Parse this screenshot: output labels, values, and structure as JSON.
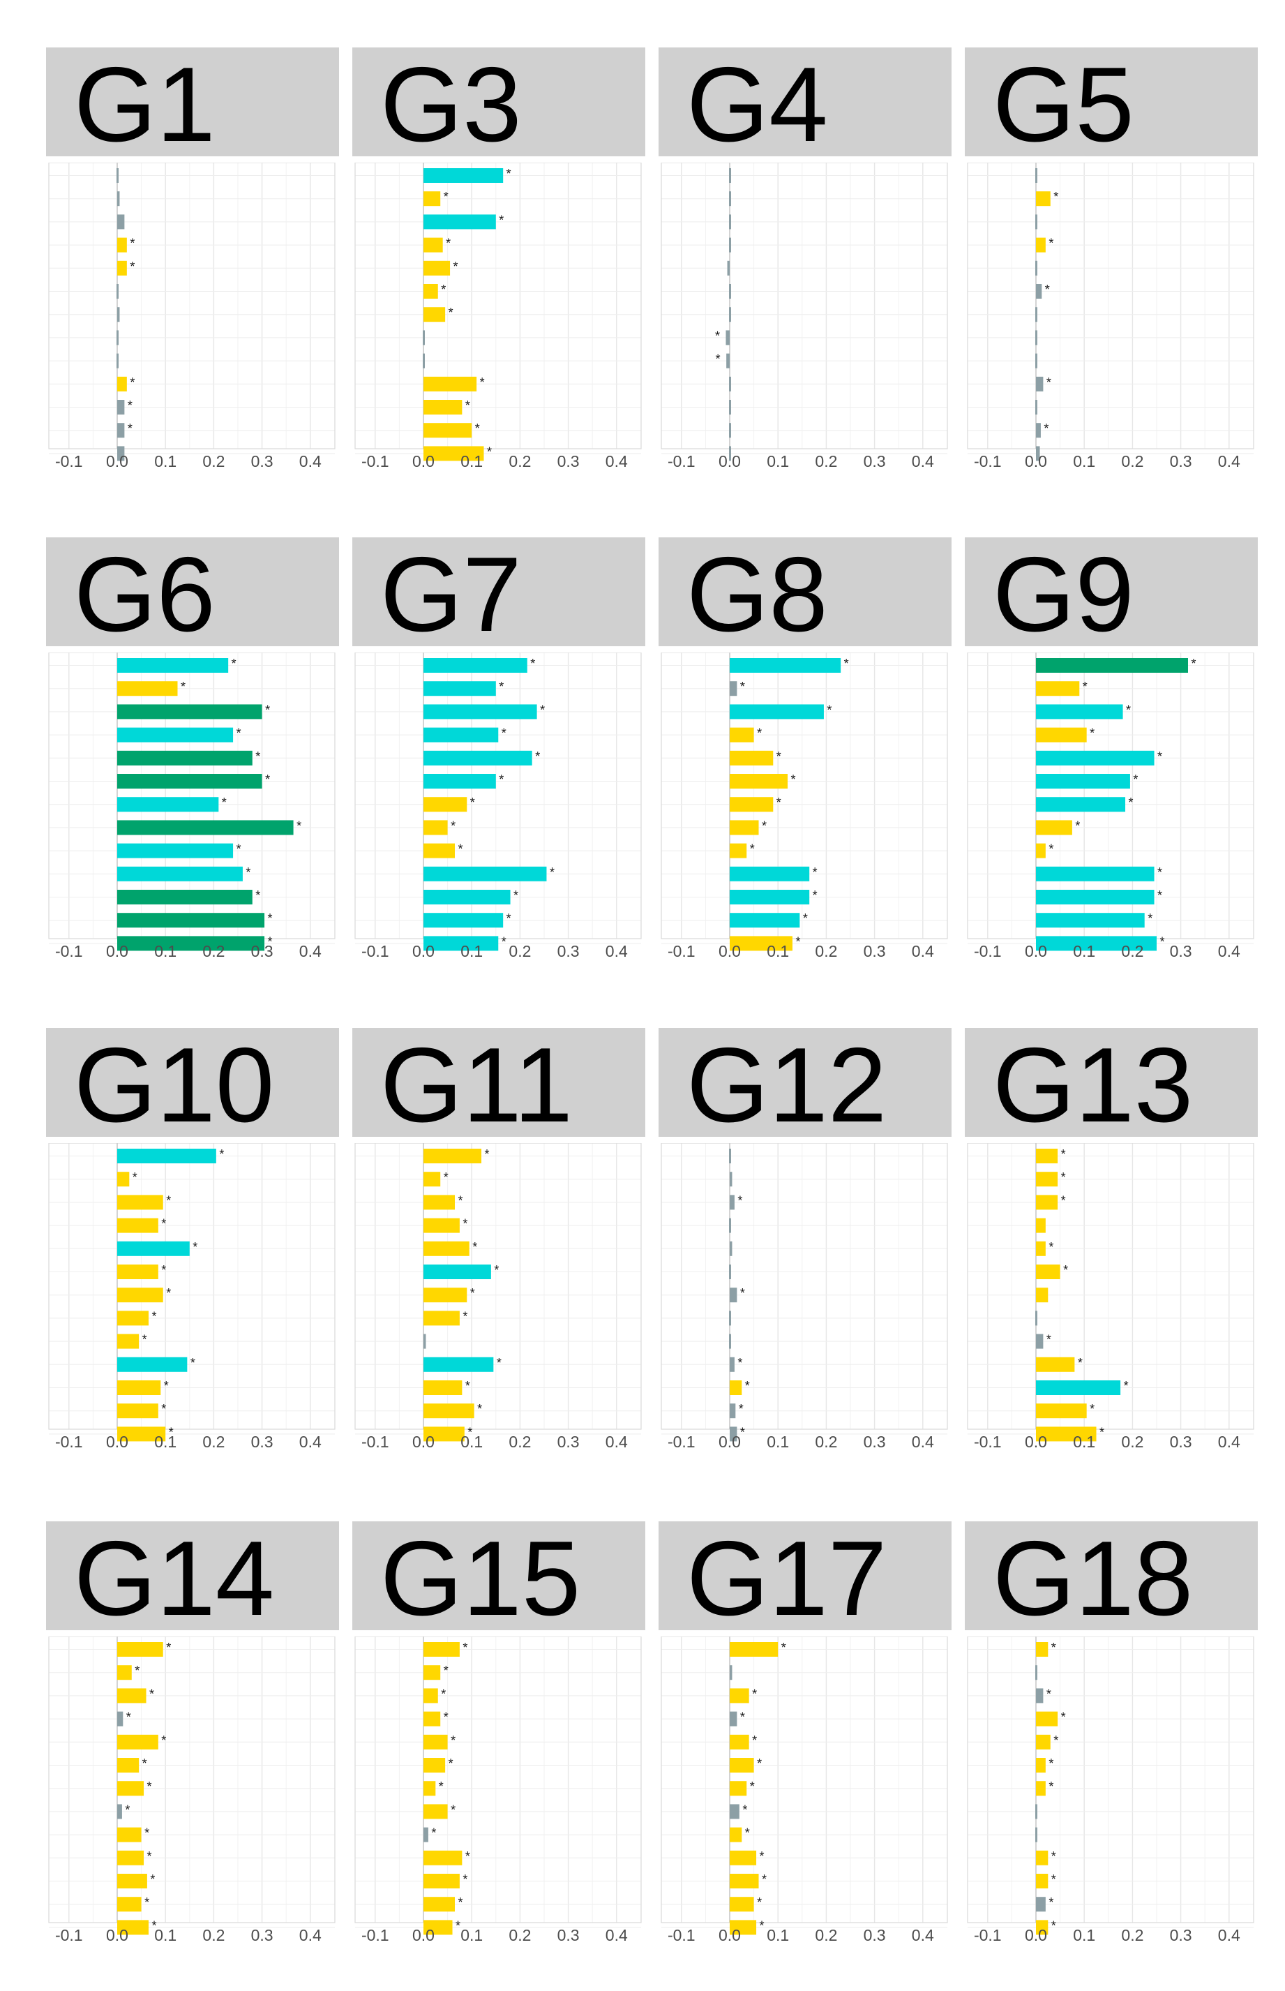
{
  "colors": {
    "sig_high": "#00a36c",
    "sig_mid": "#00d8d8",
    "sig_low": "#ffd700",
    "nonsig": "#8c9fa5",
    "header_bg": "#d0d0d0",
    "grid": "#ebebeb",
    "axis_text": "#4d4d4d"
  },
  "chart_data": [
    {
      "type": "bar",
      "title": "G1",
      "orientation": "horizontal",
      "xlim": [
        -0.1,
        0.4
      ],
      "x_ticks": [
        "-0.1",
        "0.0",
        "0.1",
        "0.2",
        "0.3",
        "0.4"
      ],
      "values": [
        0.0,
        0.005,
        0.015,
        0.02,
        0.02,
        0.0,
        0.005,
        0.0,
        0.0,
        0.02,
        0.015,
        0.015,
        0.015
      ],
      "colors": [
        "nonsig",
        "nonsig",
        "nonsig",
        "sig_low",
        "sig_low",
        "nonsig",
        "nonsig",
        "nonsig",
        "nonsig",
        "sig_low",
        "nonsig",
        "nonsig",
        "nonsig"
      ],
      "significant": [
        false,
        false,
        false,
        true,
        true,
        false,
        false,
        false,
        false,
        true,
        true,
        true,
        false
      ]
    },
    {
      "type": "bar",
      "title": "G3",
      "orientation": "horizontal",
      "xlim": [
        -0.1,
        0.4
      ],
      "x_ticks": [
        "-0.1",
        "0.0",
        "0.1",
        "0.2",
        "0.3",
        "0.4"
      ],
      "values": [
        0.165,
        0.035,
        0.15,
        0.04,
        0.055,
        0.03,
        0.045,
        0.0,
        0.0,
        0.11,
        0.08,
        0.1,
        0.125
      ],
      "colors": [
        "sig_mid",
        "sig_low",
        "sig_mid",
        "sig_low",
        "sig_low",
        "sig_low",
        "sig_low",
        "nonsig",
        "nonsig",
        "sig_low",
        "sig_low",
        "sig_low",
        "sig_low"
      ],
      "significant": [
        true,
        true,
        true,
        true,
        true,
        true,
        true,
        false,
        false,
        true,
        true,
        true,
        true
      ]
    },
    {
      "type": "bar",
      "title": "G4",
      "orientation": "horizontal",
      "xlim": [
        -0.1,
        0.4
      ],
      "x_ticks": [
        "-0.1",
        "0.0",
        "0.1",
        "0.2",
        "0.3",
        "0.4"
      ],
      "values": [
        0.0,
        0.0,
        0.0,
        0.0,
        -0.005,
        0.0,
        0.0,
        -0.008,
        -0.007,
        0.0,
        0.003,
        0.0,
        0.0
      ],
      "colors": [
        "nonsig",
        "nonsig",
        "nonsig",
        "nonsig",
        "nonsig",
        "nonsig",
        "nonsig",
        "nonsig",
        "nonsig",
        "nonsig",
        "nonsig",
        "nonsig",
        "nonsig"
      ],
      "significant": [
        false,
        false,
        false,
        false,
        false,
        false,
        false,
        true,
        true,
        false,
        false,
        false,
        false
      ]
    },
    {
      "type": "bar",
      "title": "G5",
      "orientation": "horizontal",
      "xlim": [
        -0.1,
        0.4
      ],
      "x_ticks": [
        "-0.1",
        "0.0",
        "0.1",
        "0.2",
        "0.3",
        "0.4"
      ],
      "values": [
        0.0,
        0.03,
        0.003,
        0.02,
        0.0,
        0.012,
        0.0,
        0.0,
        0.0,
        0.015,
        0.0,
        0.01,
        0.008
      ],
      "colors": [
        "nonsig",
        "sig_low",
        "nonsig",
        "sig_low",
        "nonsig",
        "nonsig",
        "nonsig",
        "nonsig",
        "nonsig",
        "nonsig",
        "nonsig",
        "nonsig",
        "nonsig"
      ],
      "significant": [
        false,
        true,
        false,
        true,
        false,
        true,
        false,
        false,
        false,
        true,
        false,
        true,
        false
      ]
    },
    {
      "type": "bar",
      "title": "G6",
      "orientation": "horizontal",
      "xlim": [
        -0.1,
        0.4
      ],
      "x_ticks": [
        "-0.1",
        "0.0",
        "0.1",
        "0.2",
        "0.3",
        "0.4"
      ],
      "values": [
        0.23,
        0.125,
        0.3,
        0.24,
        0.28,
        0.3,
        0.21,
        0.365,
        0.24,
        0.26,
        0.28,
        0.305,
        0.305
      ],
      "colors": [
        "sig_mid",
        "sig_low",
        "sig_high",
        "sig_mid",
        "sig_high",
        "sig_high",
        "sig_mid",
        "sig_high",
        "sig_mid",
        "sig_mid",
        "sig_high",
        "sig_high",
        "sig_high"
      ],
      "significant": [
        true,
        true,
        true,
        true,
        true,
        true,
        true,
        true,
        true,
        true,
        true,
        true,
        true
      ]
    },
    {
      "type": "bar",
      "title": "G7",
      "orientation": "horizontal",
      "xlim": [
        -0.1,
        0.4
      ],
      "x_ticks": [
        "-0.1",
        "0.0",
        "0.1",
        "0.2",
        "0.3",
        "0.4"
      ],
      "values": [
        0.215,
        0.15,
        0.235,
        0.155,
        0.225,
        0.15,
        0.09,
        0.05,
        0.065,
        0.255,
        0.18,
        0.165,
        0.155
      ],
      "colors": [
        "sig_mid",
        "sig_mid",
        "sig_mid",
        "sig_mid",
        "sig_mid",
        "sig_mid",
        "sig_low",
        "sig_low",
        "sig_low",
        "sig_mid",
        "sig_mid",
        "sig_mid",
        "sig_mid"
      ],
      "significant": [
        true,
        true,
        true,
        true,
        true,
        true,
        true,
        true,
        true,
        true,
        true,
        true,
        true
      ]
    },
    {
      "type": "bar",
      "title": "G8",
      "orientation": "horizontal",
      "xlim": [
        -0.1,
        0.4
      ],
      "x_ticks": [
        "-0.1",
        "0.0",
        "0.1",
        "0.2",
        "0.3",
        "0.4"
      ],
      "values": [
        0.23,
        0.015,
        0.195,
        0.05,
        0.09,
        0.12,
        0.09,
        0.06,
        0.035,
        0.165,
        0.165,
        0.145,
        0.13
      ],
      "colors": [
        "sig_mid",
        "nonsig",
        "sig_mid",
        "sig_low",
        "sig_low",
        "sig_low",
        "sig_low",
        "sig_low",
        "sig_low",
        "sig_mid",
        "sig_mid",
        "sig_mid",
        "sig_low"
      ],
      "significant": [
        true,
        true,
        true,
        true,
        true,
        true,
        true,
        true,
        true,
        true,
        true,
        true,
        true
      ]
    },
    {
      "type": "bar",
      "title": "G9",
      "orientation": "horizontal",
      "xlim": [
        -0.1,
        0.4
      ],
      "x_ticks": [
        "-0.1",
        "0.0",
        "0.1",
        "0.2",
        "0.3",
        "0.4"
      ],
      "values": [
        0.315,
        0.09,
        0.18,
        0.105,
        0.245,
        0.195,
        0.185,
        0.075,
        0.02,
        0.245,
        0.245,
        0.225,
        0.25
      ],
      "colors": [
        "sig_high",
        "sig_low",
        "sig_mid",
        "sig_low",
        "sig_mid",
        "sig_mid",
        "sig_mid",
        "sig_low",
        "sig_low",
        "sig_mid",
        "sig_mid",
        "sig_mid",
        "sig_mid"
      ],
      "significant": [
        true,
        true,
        true,
        true,
        true,
        true,
        true,
        true,
        true,
        true,
        true,
        true,
        true
      ]
    },
    {
      "type": "bar",
      "title": "G10",
      "orientation": "horizontal",
      "xlim": [
        -0.1,
        0.4
      ],
      "x_ticks": [
        "-0.1",
        "0.0",
        "0.1",
        "0.2",
        "0.3",
        "0.4"
      ],
      "values": [
        0.205,
        0.025,
        0.095,
        0.085,
        0.15,
        0.085,
        0.095,
        0.065,
        0.045,
        0.145,
        0.09,
        0.085,
        0.1
      ],
      "colors": [
        "sig_mid",
        "sig_low",
        "sig_low",
        "sig_low",
        "sig_mid",
        "sig_low",
        "sig_low",
        "sig_low",
        "sig_low",
        "sig_mid",
        "sig_low",
        "sig_low",
        "sig_low"
      ],
      "significant": [
        true,
        true,
        true,
        true,
        true,
        true,
        true,
        true,
        true,
        true,
        true,
        true,
        true
      ]
    },
    {
      "type": "bar",
      "title": "G11",
      "orientation": "horizontal",
      "xlim": [
        -0.1,
        0.4
      ],
      "x_ticks": [
        "-0.1",
        "0.0",
        "0.1",
        "0.2",
        "0.3",
        "0.4"
      ],
      "values": [
        0.12,
        0.035,
        0.065,
        0.075,
        0.095,
        0.14,
        0.09,
        0.075,
        0.005,
        0.145,
        0.08,
        0.105,
        0.085
      ],
      "colors": [
        "sig_low",
        "sig_low",
        "sig_low",
        "sig_low",
        "sig_low",
        "sig_mid",
        "sig_low",
        "sig_low",
        "nonsig",
        "sig_mid",
        "sig_low",
        "sig_low",
        "sig_low"
      ],
      "significant": [
        true,
        true,
        true,
        true,
        true,
        true,
        true,
        true,
        false,
        true,
        true,
        true,
        true
      ]
    },
    {
      "type": "bar",
      "title": "G12",
      "orientation": "horizontal",
      "xlim": [
        -0.1,
        0.4
      ],
      "x_ticks": [
        "-0.1",
        "0.0",
        "0.1",
        "0.2",
        "0.3",
        "0.4"
      ],
      "values": [
        0.0,
        0.005,
        0.01,
        0.0,
        0.005,
        0.0,
        0.015,
        0.0,
        0.0,
        0.01,
        0.025,
        0.012,
        0.015
      ],
      "colors": [
        "nonsig",
        "nonsig",
        "nonsig",
        "nonsig",
        "nonsig",
        "nonsig",
        "nonsig",
        "nonsig",
        "nonsig",
        "nonsig",
        "sig_low",
        "nonsig",
        "nonsig"
      ],
      "significant": [
        false,
        false,
        true,
        false,
        false,
        false,
        true,
        false,
        false,
        true,
        true,
        true,
        true
      ]
    },
    {
      "type": "bar",
      "title": "G13",
      "orientation": "horizontal",
      "xlim": [
        -0.1,
        0.4
      ],
      "x_ticks": [
        "-0.1",
        "0.0",
        "0.1",
        "0.2",
        "0.3",
        "0.4"
      ],
      "values": [
        0.045,
        0.045,
        0.045,
        0.02,
        0.02,
        0.05,
        0.025,
        0.0,
        0.015,
        0.08,
        0.175,
        0.105,
        0.125
      ],
      "colors": [
        "sig_low",
        "sig_low",
        "sig_low",
        "sig_low",
        "sig_low",
        "sig_low",
        "sig_low",
        "nonsig",
        "nonsig",
        "sig_low",
        "sig_mid",
        "sig_low",
        "sig_low"
      ],
      "significant": [
        true,
        true,
        true,
        false,
        true,
        true,
        false,
        false,
        true,
        true,
        true,
        true,
        true
      ]
    },
    {
      "type": "bar",
      "title": "G14",
      "orientation": "horizontal",
      "xlim": [
        -0.1,
        0.4
      ],
      "x_ticks": [
        "-0.1",
        "0.0",
        "0.1",
        "0.2",
        "0.3",
        "0.4"
      ],
      "values": [
        0.095,
        0.03,
        0.06,
        0.012,
        0.085,
        0.045,
        0.055,
        0.01,
        0.05,
        0.055,
        0.062,
        0.05,
        0.065
      ],
      "colors": [
        "sig_low",
        "sig_low",
        "sig_low",
        "nonsig",
        "sig_low",
        "sig_low",
        "sig_low",
        "nonsig",
        "sig_low",
        "sig_low",
        "sig_low",
        "sig_low",
        "sig_low"
      ],
      "significant": [
        true,
        true,
        true,
        true,
        true,
        true,
        true,
        true,
        true,
        true,
        true,
        true,
        true
      ]
    },
    {
      "type": "bar",
      "title": "G15",
      "orientation": "horizontal",
      "xlim": [
        -0.1,
        0.4
      ],
      "x_ticks": [
        "-0.1",
        "0.0",
        "0.1",
        "0.2",
        "0.3",
        "0.4"
      ],
      "values": [
        0.075,
        0.035,
        0.03,
        0.035,
        0.05,
        0.045,
        0.025,
        0.05,
        0.01,
        0.08,
        0.075,
        0.065,
        0.06
      ],
      "colors": [
        "sig_low",
        "sig_low",
        "sig_low",
        "sig_low",
        "sig_low",
        "sig_low",
        "sig_low",
        "sig_low",
        "nonsig",
        "sig_low",
        "sig_low",
        "sig_low",
        "sig_low"
      ],
      "significant": [
        true,
        true,
        true,
        true,
        true,
        true,
        true,
        true,
        true,
        true,
        true,
        true,
        true
      ]
    },
    {
      "type": "bar",
      "title": "G17",
      "orientation": "horizontal",
      "xlim": [
        -0.1,
        0.4
      ],
      "x_ticks": [
        "-0.1",
        "0.0",
        "0.1",
        "0.2",
        "0.3",
        "0.4"
      ],
      "values": [
        0.1,
        0.005,
        0.04,
        0.015,
        0.04,
        0.05,
        0.035,
        0.02,
        0.025,
        0.055,
        0.06,
        0.05,
        0.055
      ],
      "colors": [
        "sig_low",
        "nonsig",
        "sig_low",
        "nonsig",
        "sig_low",
        "sig_low",
        "sig_low",
        "nonsig",
        "sig_low",
        "sig_low",
        "sig_low",
        "sig_low",
        "sig_low"
      ],
      "significant": [
        true,
        false,
        true,
        true,
        true,
        true,
        true,
        true,
        true,
        true,
        true,
        true,
        true
      ]
    },
    {
      "type": "bar",
      "title": "G18",
      "orientation": "horizontal",
      "xlim": [
        -0.1,
        0.4
      ],
      "x_ticks": [
        "-0.1",
        "0.0",
        "0.1",
        "0.2",
        "0.3",
        "0.4"
      ],
      "values": [
        0.025,
        0.003,
        0.015,
        0.045,
        0.03,
        0.02,
        0.02,
        0.003,
        0.0,
        0.025,
        0.025,
        0.02,
        0.025
      ],
      "colors": [
        "sig_low",
        "nonsig",
        "nonsig",
        "sig_low",
        "sig_low",
        "sig_low",
        "sig_low",
        "nonsig",
        "nonsig",
        "sig_low",
        "sig_low",
        "nonsig",
        "sig_low"
      ],
      "significant": [
        true,
        false,
        true,
        true,
        true,
        true,
        true,
        false,
        false,
        true,
        true,
        true,
        true
      ]
    }
  ]
}
